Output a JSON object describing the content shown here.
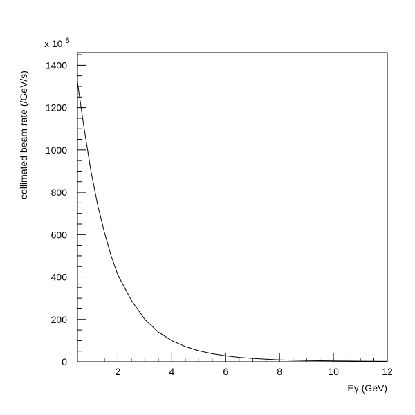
{
  "chart_data": {
    "type": "line",
    "title": "",
    "xlabel": "Eγ (GeV)",
    "ylabel": "collimated beam rate (/GeV/s)",
    "y_multiplier_label": "x 10",
    "y_multiplier_exponent": "8",
    "xlim": [
      0.5,
      12
    ],
    "ylim": [
      0,
      1460
    ],
    "x_major_ticks": [
      2,
      4,
      6,
      8,
      10,
      12
    ],
    "y_major_ticks": [
      0,
      200,
      400,
      600,
      800,
      1000,
      1200,
      1400
    ],
    "x_tick_labels": [
      "2",
      "4",
      "6",
      "8",
      "10",
      "12"
    ],
    "y_tick_labels": [
      "0",
      "200",
      "400",
      "600",
      "800",
      "1000",
      "1200",
      "1400"
    ],
    "grid": false,
    "series": [
      {
        "x": [
          0.5,
          0.75,
          1.0,
          1.25,
          1.5,
          1.75,
          2.0,
          2.5,
          3.0,
          3.5,
          4.0,
          4.5,
          5.0,
          5.5,
          6.0,
          6.5,
          7.0,
          7.5,
          8.0,
          9.0,
          10.0,
          11.0,
          12.0
        ],
        "y": [
          1320,
          1100,
          900,
          740,
          610,
          500,
          410,
          290,
          200,
          140,
          100,
          72,
          52,
          38,
          28,
          21,
          16,
          12,
          9,
          6,
          4,
          3,
          2
        ]
      }
    ]
  }
}
